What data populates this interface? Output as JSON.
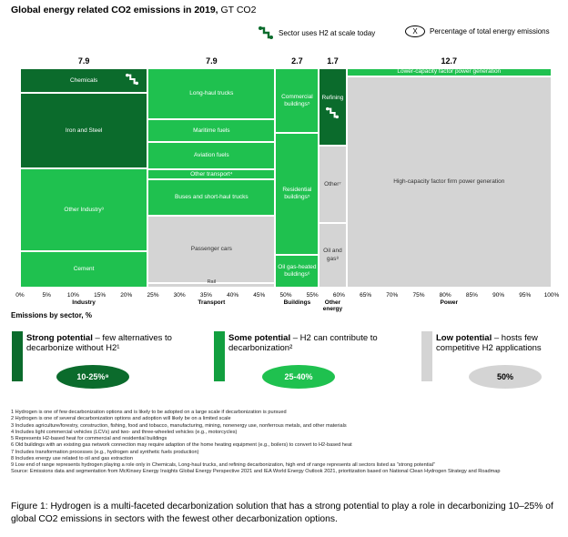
{
  "title_bold": "Global energy related CO2 emissions in 2019,",
  "title_unit": " GT CO2",
  "legend": {
    "h2_label": "Sector uses H2 at scale today",
    "pct_symbol": "X",
    "pct_label": "Percentage of total energy emissions"
  },
  "colors": {
    "dark": "#0b6b2c",
    "medium": "#129f3f",
    "light": "#1fc14f",
    "grey": "#d4d4d4"
  },
  "axis_title": "Emissions by sector, %",
  "chart_data": {
    "type": "marimekko",
    "xlim": [
      0,
      100
    ],
    "x_ticks": [
      "0%",
      "5%",
      "10%",
      "15%",
      "20%",
      "25%",
      "30%",
      "35%",
      "40%",
      "45%",
      "50%",
      "55%",
      "60%",
      "65%",
      "70%",
      "75%",
      "80%",
      "85%",
      "90%",
      "95%",
      "100%"
    ],
    "sectors": [
      {
        "name": "Industry",
        "total": "7.9",
        "width": 7.9,
        "segments": [
          {
            "label": "Chemicals",
            "value": 0.9,
            "potential": "strong",
            "h2": true
          },
          {
            "label": "Iron and Steel",
            "value": 2.7,
            "potential": "strong"
          },
          {
            "label": "Other Industry³",
            "value": 3.0,
            "potential": "some"
          },
          {
            "label": "Cement",
            "value": 1.3,
            "potential": "some"
          }
        ]
      },
      {
        "name": "Transport",
        "total": "7.9",
        "width": 7.9,
        "segments": [
          {
            "label": "Long-haul trucks",
            "value": 1.85,
            "potential": "some"
          },
          {
            "label": "Maritime fuels",
            "value": 0.8,
            "potential": "some"
          },
          {
            "label": "Aviation fuels",
            "value": 1.0,
            "potential": "some"
          },
          {
            "label": "Other transport⁴",
            "value": 0.35,
            "potential": "some"
          },
          {
            "label": "Buses and short-haul trucks",
            "value": 1.3,
            "potential": "some"
          },
          {
            "label": "Passenger cars",
            "value": 2.45,
            "potential": "low"
          },
          {
            "label": "Rail",
            "value": 0.15,
            "potential": "low"
          }
        ]
      },
      {
        "name": "Buildings",
        "total": "2.7",
        "width": 2.7,
        "segments": [
          {
            "label": "Commercial buildings⁵",
            "value": 0.8,
            "potential": "some"
          },
          {
            "label": "Residential buildings⁵",
            "value": 1.5,
            "potential": "some"
          },
          {
            "label": "Oil gas-heated buildings⁶",
            "value": 0.4,
            "potential": "some"
          }
        ]
      },
      {
        "name": "Other energy",
        "total": "1.7",
        "width": 1.7,
        "segments": [
          {
            "label": "Refining",
            "value": 0.6,
            "potential": "strong",
            "h2": true
          },
          {
            "label": "Other⁷",
            "value": 0.6,
            "potential": "low"
          },
          {
            "label": "Oil and gas⁸",
            "value": 0.5,
            "potential": "low"
          }
        ]
      },
      {
        "name": "Power",
        "total": "12.7",
        "width": 12.7,
        "segments": [
          {
            "label": "Lower-capacity factor power generation",
            "value": 0.45,
            "potential": "some"
          },
          {
            "label": "High-capacity factor firm power generation",
            "value": 12.25,
            "potential": "low"
          }
        ]
      }
    ]
  },
  "potentials": [
    {
      "bold": "Strong potential",
      "rest": " – few alternatives to decarbonize without H2¹",
      "pct": "10-25%⁹"
    },
    {
      "bold": "Some potential",
      "rest": " – H2 can contribute to decarbonization²",
      "pct": "25-40%"
    },
    {
      "bold": "Low potential",
      "rest": " – hosts few competitive H2 applications",
      "pct": "50%"
    }
  ],
  "footnotes": [
    "1 Hydrogen is one of few decarbonization options and is likely to be adopted on a large scale if decarbonization is pursued",
    "2 Hydrogen is one of several decarbonization options and adoption will likely be on a limited scale",
    "3 Includes agriculture/forestry, construction, fishing, food and tobacco, manufacturing, mining, nonenergy use, nonferrous metals, and other materials",
    "4 Includes light commercial vehicles (LCVs) and two- and three-wheeled vehicles (e.g., motorcycles)",
    "5 Represents H2-based heat for commercial and residential buildings",
    "6 Old buildings with an existing gas network connection may require adaption of the home heating equipment (e.g., boilers) to convert to H2-based heat",
    "7 Includes transformation processes (e.g., hydrogen and synthetic fuels production)",
    "8 Includes energy use related to oil and gas extraction",
    "9 Low end of range represents hydrogen playing a role only in Chemicals, Long-haul trucks, and refining decarbonization, high end of range represents all sectors listed as “strong potential”",
    "Source: Emissions data and segmentation from McKinsey Energy Insights Global Energy Perspective 2021 and IEA World Energy Outlook 2021, prioritization based on National Clean Hydrogen Strategy and Roadmap"
  ],
  "caption": "Figure 1: Hydrogen is a multi-faceted decarbonization solution that has a strong potential to play a role in decarbonizing 10–25% of global CO2 emissions in sectors with the fewest other decarbonization options."
}
